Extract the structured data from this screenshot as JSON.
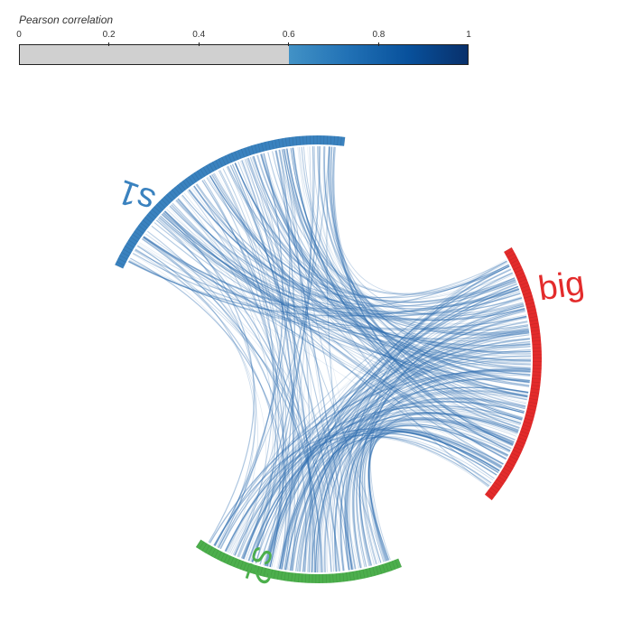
{
  "legend": {
    "title": "Pearson correlation",
    "ticks": [
      "0",
      "0.2",
      "0.4",
      "0.6",
      "0.8",
      "1"
    ],
    "min": 0,
    "max": 1,
    "threshold": 0.6,
    "below_threshold_color": "#d0d0d0",
    "gradient_colors": [
      "#4292c6",
      "#2171b5",
      "#08519c",
      "#08306b"
    ]
  },
  "groups": [
    {
      "name": "s1",
      "color": "#3a82bf",
      "start_angle_deg": 205,
      "end_angle_deg": 277
    },
    {
      "name": "big",
      "color": "#e32b2b",
      "start_angle_deg": 330,
      "end_angle_deg": 39
    },
    {
      "name": "s2",
      "color": "#4caf4c",
      "start_angle_deg": 68,
      "end_angle_deg": 123
    }
  ],
  "link_color": "#2f6eb0"
}
